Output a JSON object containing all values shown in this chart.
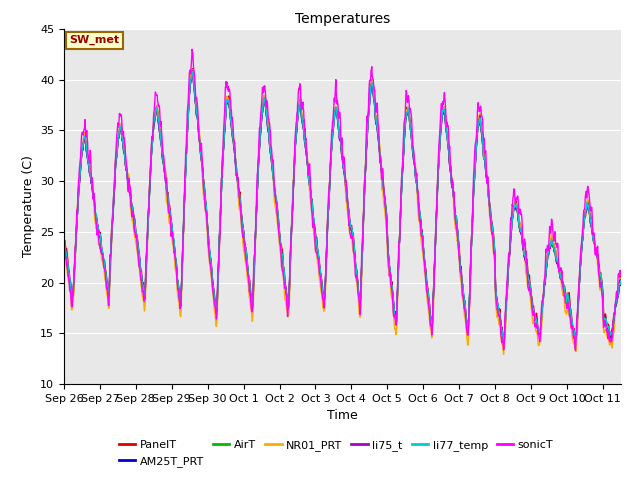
{
  "title": "Temperatures",
  "xlabel": "Time",
  "ylabel": "Temperature (C)",
  "ylim": [
    10,
    45
  ],
  "background_color": "#e8e8e8",
  "grid_color": "#ffffff",
  "series_colors": {
    "PanelT": "#dd0000",
    "AM25T_PRT": "#0000dd",
    "AirT": "#00bb00",
    "NR01_PRT": "#ffaa00",
    "li75_t": "#aa00cc",
    "li77_temp": "#00cccc",
    "sonicT": "#ff00ff"
  },
  "annotation_text": "SW_met",
  "annotation_color": "#990000",
  "annotation_bg": "#ffffcc",
  "annotation_border": "#996600",
  "x_tick_labels": [
    "Sep 26",
    "Sep 27",
    "Sep 28",
    "Sep 29",
    "Sep 30",
    "Oct 1",
    "Oct 2",
    "Oct 3",
    "Oct 4",
    "Oct 5",
    "Oct 6",
    "Oct 7",
    "Oct 8",
    "Oct 9",
    "Oct 10",
    "Oct 11"
  ],
  "x_tick_positions": [
    0,
    1,
    2,
    3,
    4,
    5,
    6,
    7,
    8,
    9,
    10,
    11,
    12,
    13,
    14,
    15
  ]
}
